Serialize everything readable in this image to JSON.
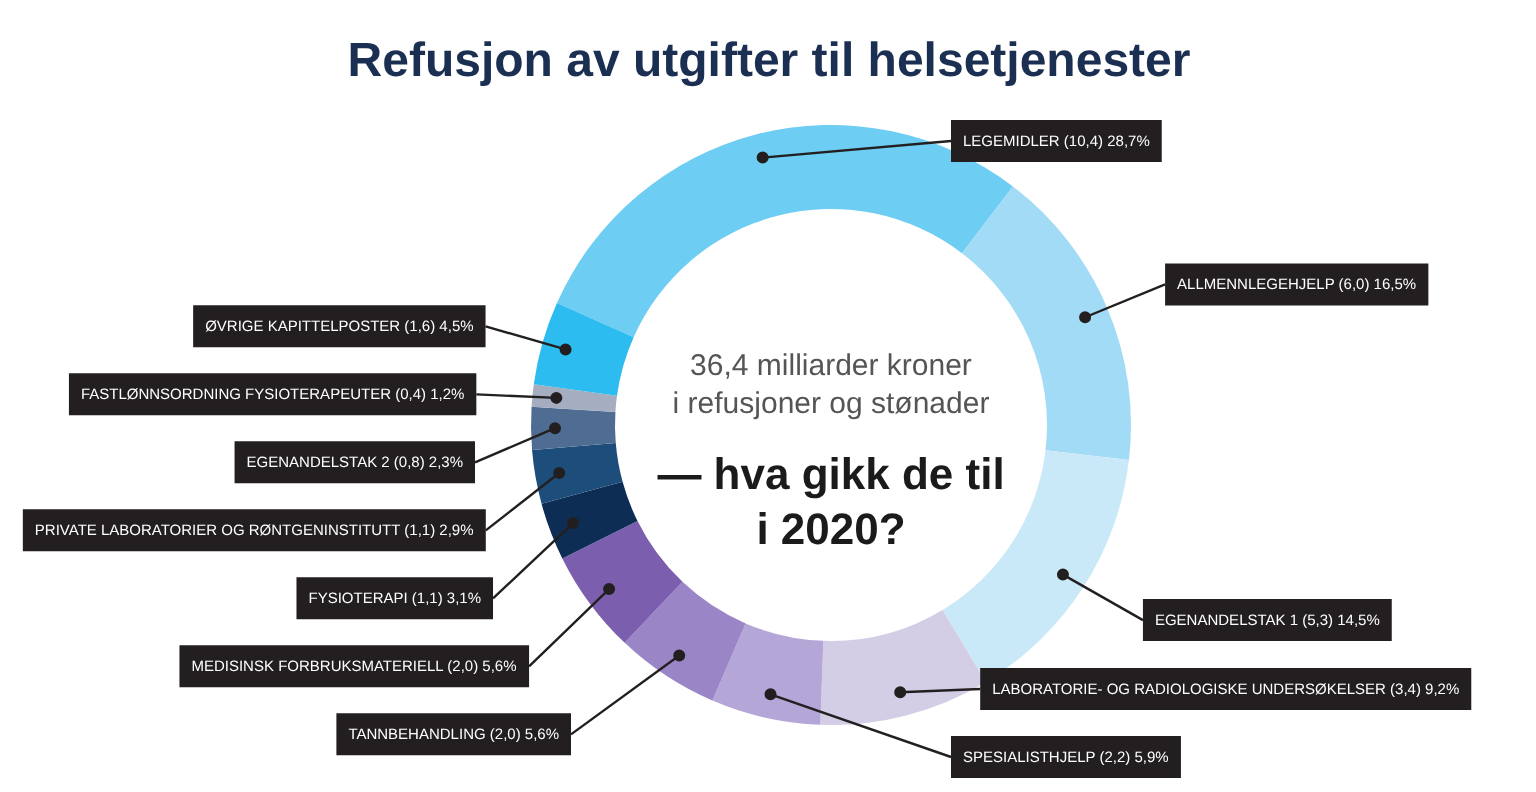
{
  "chart_data": {
    "type": "donut",
    "title": "Refusjon av utgifter til helsetjenester",
    "categories": [
      "LEGEMIDLER (10,4)",
      "ALLMENNLEGEHJELP (6,0)",
      "EGENANDELSTAK 1 (5,3)",
      "LABORATORIE- OG RADIOLOGISKE UNDERSØKELSER (3,4)",
      "SPESIALISTHJELP (2,2)",
      "TANNBEHANDLING (2,0)",
      "MEDISINSK FORBRUKSMATERIELL (2,0)",
      "FYSIOTERAPI (1,1)",
      "PRIVATE LABORATORIER OG RØNTGENINSTITUTT (1,1)",
      "EGENANDELSTAK 2 (0,8)",
      "FASTLØNNSORDNING FYSIOTERAPEUTER (0,4)",
      "ØVRIGE KAPITTELPOSTER (1,6)"
    ],
    "values": [
      28.7,
      16.5,
      14.5,
      9.2,
      5.9,
      5.6,
      5.6,
      3.1,
      2.9,
      2.3,
      1.2,
      4.5
    ],
    "value_labels": [
      "28,7%",
      "16,5%",
      "14,5%",
      "9,2%",
      "5,9%",
      "5,6%",
      "5,6%",
      "3,1%",
      "2,9%",
      "2,3%",
      "1,2%",
      "4,5%"
    ],
    "colors": [
      "#6dcdf3",
      "#a2dbf5",
      "#c9e9f8",
      "#d4cde6",
      "#b4a6d6",
      "#9a86c7",
      "#7b5fae",
      "#0d2d55",
      "#1d4d7a",
      "#4f6d93",
      "#a4aec0",
      "#2cbcef"
    ],
    "annotations": [
      "36,4 milliarder kroner\ni refusjoner og stønader",
      "— hva gikk de til\ni 2020?"
    ]
  }
}
